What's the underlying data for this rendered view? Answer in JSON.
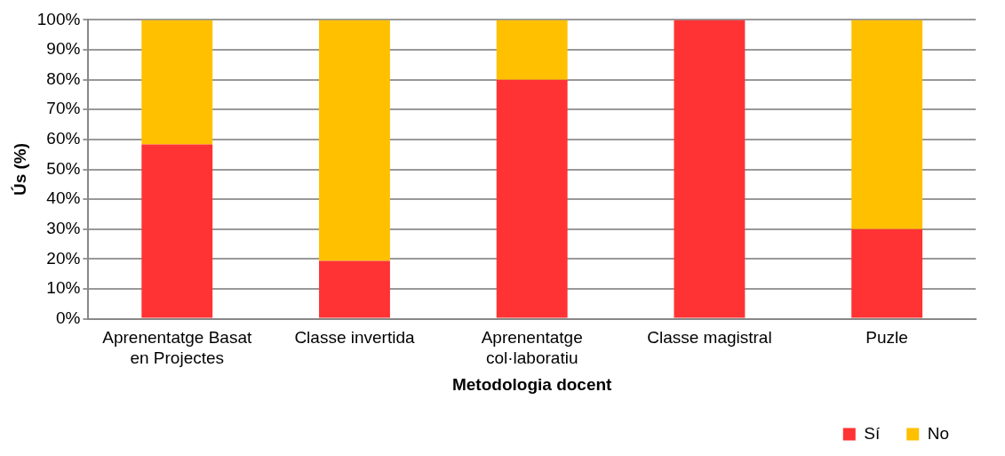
{
  "chart_data": {
    "type": "bar",
    "stacked": true,
    "xlabel": "Metodologia docent",
    "ylabel": "Ús (%)",
    "categories": [
      "Aprenentatge Basat en Projectes",
      "Classe invertida",
      "Aprenentatge col·laboratiu",
      "Classe magistral",
      "Puzle"
    ],
    "series": [
      {
        "name": "Sí",
        "color": "#ff3333",
        "values": [
          58.3,
          19.4,
          80,
          100,
          30
        ]
      },
      {
        "name": "No",
        "color": "#ffc000",
        "values": [
          41.7,
          80.6,
          20,
          0,
          70
        ]
      }
    ],
    "ylim": [
      0,
      100
    ],
    "yticks": [
      {
        "value": 0,
        "label": "0%"
      },
      {
        "value": 10,
        "label": "10%"
      },
      {
        "value": 20,
        "label": "20%"
      },
      {
        "value": 30,
        "label": "30%"
      },
      {
        "value": 40,
        "label": "40%"
      },
      {
        "value": 50,
        "label": "50%"
      },
      {
        "value": 60,
        "label": "60%"
      },
      {
        "value": 70,
        "label": "70%"
      },
      {
        "value": 80,
        "label": "80%"
      },
      {
        "value": 90,
        "label": "90%"
      },
      {
        "value": 100,
        "label": "100%"
      }
    ],
    "grid": "y",
    "legend": "bottom right"
  }
}
